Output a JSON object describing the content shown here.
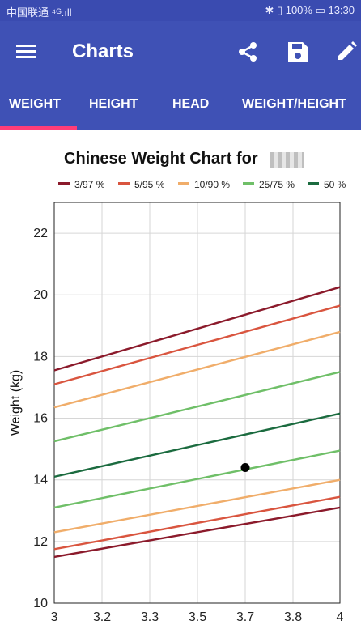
{
  "status_bar": {
    "carrier": "中国联通 ⁴ᴳ.ıll",
    "right": "✱ ▯ 100%  ▭ 13:30"
  },
  "app_bar": {
    "title": "Charts",
    "icons": [
      "menu-icon",
      "share-icon",
      "save-icon",
      "edit-icon"
    ]
  },
  "tabs": [
    {
      "label": "WEIGHT",
      "selected": true
    },
    {
      "label": "HEIGHT",
      "selected": false
    },
    {
      "label": "HEAD",
      "selected": false
    },
    {
      "label": "WEIGHT/HEIGHT",
      "selected": false
    }
  ],
  "chart_data": {
    "type": "line",
    "title": "Chinese Weight Chart for",
    "ylabel": "Weight (kg)",
    "xlabel": "",
    "xlim": [
      3,
      4
    ],
    "ylim": [
      10,
      23
    ],
    "x_ticks": [
      3,
      3.2,
      3.3,
      3.5,
      3.7,
      3.8,
      4
    ],
    "x_tick_labels": [
      "3",
      "3.2",
      "3.3",
      "3.5",
      "3.7",
      "3.8",
      "4"
    ],
    "y_ticks": [
      10,
      12,
      14,
      16,
      18,
      20,
      22
    ],
    "grid": true,
    "legend_position": "top",
    "legend": [
      {
        "label": "3/97 %",
        "color": "#8b1a2b"
      },
      {
        "label": "5/95 %",
        "color": "#d9553f"
      },
      {
        "label": "10/90 %",
        "color": "#f0ad6a"
      },
      {
        "label": "25/75 %",
        "color": "#6fbf68"
      },
      {
        "label": "50 %",
        "color": "#1b6b3f"
      }
    ],
    "series": [
      {
        "group": 0,
        "color": "#8b1a2b",
        "x": [
          3,
          4
        ],
        "y": [
          17.55,
          20.25
        ]
      },
      {
        "group": 1,
        "color": "#d9553f",
        "x": [
          3,
          4
        ],
        "y": [
          17.1,
          19.65
        ]
      },
      {
        "group": 2,
        "color": "#f0ad6a",
        "x": [
          3,
          4
        ],
        "y": [
          16.35,
          18.8
        ]
      },
      {
        "group": 3,
        "color": "#6fbf68",
        "x": [
          3,
          4
        ],
        "y": [
          15.25,
          17.5
        ]
      },
      {
        "group": 4,
        "color": "#1b6b3f",
        "x": [
          3,
          4
        ],
        "y": [
          14.1,
          16.15
        ]
      },
      {
        "group": 3,
        "color": "#6fbf68",
        "x": [
          3,
          4
        ],
        "y": [
          13.1,
          14.95
        ]
      },
      {
        "group": 2,
        "color": "#f0ad6a",
        "x": [
          3,
          4
        ],
        "y": [
          12.3,
          14.0
        ]
      },
      {
        "group": 1,
        "color": "#d9553f",
        "x": [
          3,
          4
        ],
        "y": [
          11.75,
          13.45
        ]
      },
      {
        "group": 0,
        "color": "#8b1a2b",
        "x": [
          3,
          4
        ],
        "y": [
          11.5,
          13.1
        ]
      }
    ],
    "points": [
      {
        "x": 3.7,
        "y": 14.4,
        "color": "#000000"
      }
    ]
  }
}
